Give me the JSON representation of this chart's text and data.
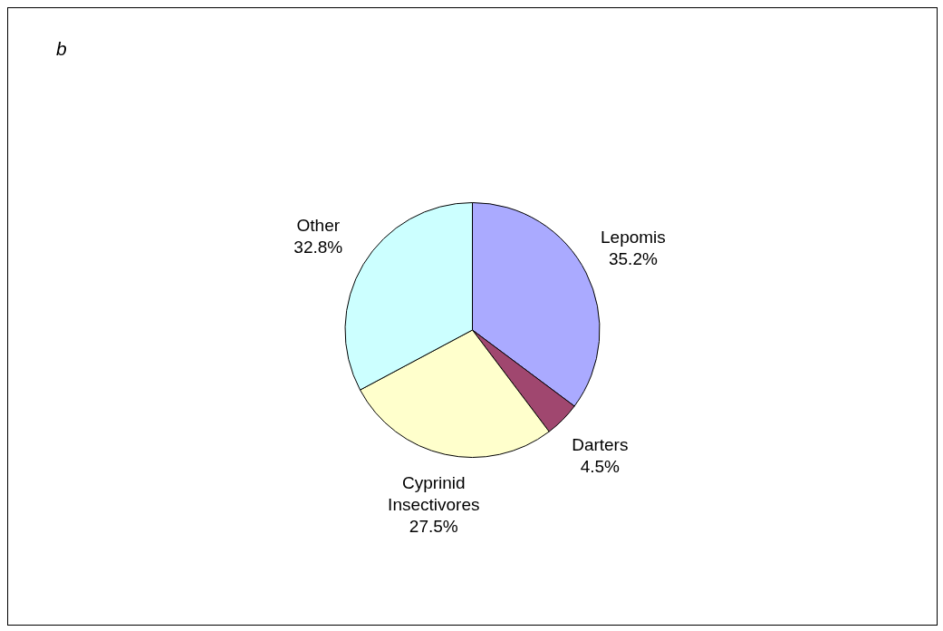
{
  "chart_data": {
    "type": "pie",
    "title": "b",
    "categories": [
      "Lepomis",
      "Darters",
      "Cyprinid Insectivores",
      "Other"
    ],
    "values": [
      35.2,
      4.5,
      27.5,
      32.8
    ],
    "colors": [
      "#aaaaff",
      "#a0476f",
      "#ffffcc",
      "#ccffff"
    ],
    "value_labels": [
      "35.2%",
      "4.5%",
      "27.5%",
      "32.8%"
    ],
    "legend": false
  }
}
